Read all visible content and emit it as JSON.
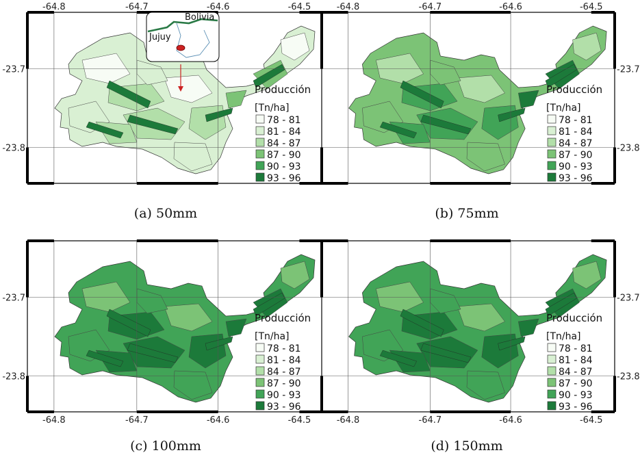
{
  "legend": {
    "title": "Producción",
    "unit": "[Tn/ha]",
    "classes": [
      {
        "label": "78 - 81",
        "color": "#f7fcf5"
      },
      {
        "label": "81 - 84",
        "color": "#d9f0d3"
      },
      {
        "label": "84 - 87",
        "color": "#b2dfa9"
      },
      {
        "label": "87 - 90",
        "color": "#7cc376"
      },
      {
        "label": "90 - 93",
        "color": "#41a457"
      },
      {
        "label": "93 - 96",
        "color": "#1c7a3a"
      }
    ]
  },
  "axes": {
    "lon_ticks": [
      "-64.8",
      "-64.7",
      "-64.6",
      "-64.5"
    ],
    "lat_ticks": [
      "-23.7",
      "-23.8"
    ]
  },
  "inset": {
    "country": "Bolivia",
    "province": "Jujuy"
  },
  "panels": [
    {
      "caption": "(a) 50mm",
      "dominant_class": 1,
      "has_inset": true
    },
    {
      "caption": "(b) 75mm",
      "dominant_class": 3,
      "has_inset": false
    },
    {
      "caption": "(c) 100mm",
      "dominant_class": 4,
      "has_inset": false
    },
    {
      "caption": "(d) 150mm",
      "dominant_class": 4,
      "has_inset": false
    }
  ],
  "colors": {
    "frame": "#000000",
    "grid": "#555555",
    "border_inset": "#2a7a46",
    "marker": "#cc2222"
  }
}
